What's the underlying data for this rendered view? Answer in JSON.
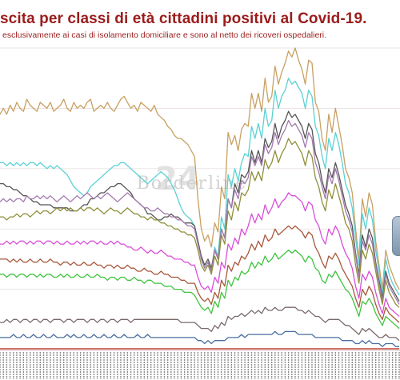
{
  "title": "scita per classi di età cittadini positivi al Covid-19.",
  "subtitle": "esclusivamente ai casi di isolamento domiciliare e sono al netto dei ricoveri ospedalieri.",
  "watermark": "Borderline",
  "watermark_badge": "24",
  "colors": {
    "title": "#9b1c1c",
    "grid": "#e6dada",
    "axis": "#c9a1a1",
    "watermark": "#cfcfcf"
  },
  "chart_data": {
    "type": "line",
    "n_points": 120,
    "x_axis": "dates (tick labels illegible)",
    "ylim": [
      0,
      100
    ],
    "grid": true,
    "legend": "none",
    "series": [
      {
        "color": "#c8a062",
        "values": [
          78,
          80,
          78,
          81,
          79,
          82,
          80,
          79,
          83,
          81,
          80,
          79,
          82,
          81,
          80,
          82,
          79,
          80,
          81,
          83,
          80,
          79,
          82,
          80,
          81,
          80,
          82,
          83,
          79,
          80,
          81,
          80,
          82,
          80,
          79,
          81,
          83,
          84,
          82,
          80,
          81,
          79,
          82,
          81,
          80,
          79,
          81,
          78,
          77,
          76,
          74,
          73,
          71,
          70,
          70,
          69,
          68,
          66,
          64,
          50,
          40,
          36,
          38,
          34,
          42,
          39,
          54,
          50,
          72,
          68,
          71,
          66,
          73,
          75,
          74,
          85,
          80,
          85,
          79,
          90,
          82,
          84,
          94,
          88,
          92,
          95,
          99,
          97,
          100,
          96,
          93,
          88,
          96,
          95,
          82,
          79,
          70,
          66,
          78,
          72,
          80,
          74,
          68,
          60,
          57,
          52,
          40,
          30,
          50,
          44,
          52,
          48,
          36,
          28,
          20,
          33,
          28,
          25,
          22,
          20
        ]
      },
      {
        "color": "#5bd1d4",
        "values": [
          62,
          62,
          61,
          62,
          61,
          62,
          61,
          62,
          61,
          62,
          62,
          61,
          62,
          61,
          60,
          61,
          60,
          61,
          60,
          59,
          58,
          56,
          54,
          53,
          52,
          51,
          52,
          54,
          55,
          56,
          57,
          58,
          59,
          60,
          61,
          61,
          62,
          62,
          61,
          60,
          59,
          58,
          57,
          56,
          55,
          56,
          57,
          58,
          59,
          58,
          57,
          55,
          53,
          50,
          47,
          45,
          44,
          43,
          41,
          36,
          30,
          27,
          29,
          26,
          34,
          31,
          44,
          40,
          58,
          54,
          60,
          56,
          62,
          65,
          64,
          74,
          70,
          75,
          70,
          80,
          74,
          76,
          86,
          80,
          84,
          86,
          90,
          88,
          89,
          87,
          85,
          80,
          86,
          84,
          74,
          71,
          64,
          60,
          70,
          66,
          72,
          68,
          62,
          55,
          52,
          47,
          37,
          28,
          45,
          40,
          47,
          43,
          33,
          26,
          18,
          30,
          25,
          22,
          20,
          18
        ]
      },
      {
        "color": "#555555",
        "values": [
          55,
          55,
          54,
          54,
          53,
          53,
          52,
          51,
          51,
          50,
          49,
          49,
          48,
          48,
          48,
          48,
          47,
          47,
          47,
          47,
          47,
          46,
          46,
          46,
          47,
          48,
          48,
          50,
          50,
          51,
          52,
          52,
          53,
          54,
          54,
          55,
          55,
          54,
          53,
          52,
          50,
          49,
          48,
          47,
          45,
          45,
          44,
          43,
          43,
          44,
          44,
          45,
          44,
          44,
          43,
          42,
          42,
          42,
          41,
          36,
          31,
          28,
          30,
          27,
          33,
          30,
          40,
          37,
          50,
          47,
          55,
          52,
          58,
          57,
          59,
          66,
          62,
          66,
          62,
          70,
          67,
          69,
          75,
          70,
          74,
          76,
          79,
          77,
          78,
          76,
          74,
          70,
          75,
          73,
          65,
          62,
          56,
          52,
          60,
          57,
          62,
          58,
          53,
          48,
          45,
          41,
          32,
          25,
          38,
          34,
          40,
          37,
          29,
          23,
          17,
          26,
          22,
          20,
          18,
          16
        ]
      },
      {
        "color": "#a37aad",
        "values": [
          49,
          50,
          49,
          50,
          49,
          50,
          50,
          49,
          51,
          50,
          50,
          51,
          50,
          51,
          50,
          51,
          50,
          49,
          50,
          51,
          50,
          49,
          50,
          51,
          50,
          51,
          52,
          51,
          50,
          51,
          50,
          51,
          52,
          51,
          50,
          49,
          50,
          51,
          52,
          51,
          50,
          49,
          48,
          47,
          47,
          46,
          46,
          47,
          46,
          45,
          45,
          44,
          44,
          43,
          43,
          42,
          41,
          41,
          40,
          35,
          30,
          27,
          29,
          26,
          33,
          30,
          40,
          37,
          50,
          47,
          53,
          50,
          56,
          55,
          57,
          64,
          61,
          64,
          61,
          68,
          65,
          67,
          72,
          68,
          71,
          73,
          76,
          74,
          75,
          73,
          71,
          67,
          72,
          70,
          62,
          59,
          54,
          50,
          58,
          55,
          60,
          56,
          51,
          46,
          43,
          39,
          31,
          24,
          36,
          33,
          38,
          35,
          28,
          22,
          16,
          25,
          21,
          19,
          17,
          15
        ]
      },
      {
        "color": "#8f8f3c",
        "values": [
          44,
          44,
          43,
          44,
          44,
          45,
          44,
          45,
          45,
          44,
          45,
          46,
          45,
          46,
          46,
          45,
          46,
          47,
          46,
          47,
          46,
          47,
          46,
          46,
          47,
          46,
          47,
          47,
          46,
          47,
          46,
          45,
          46,
          47,
          46,
          46,
          45,
          46,
          47,
          46,
          45,
          45,
          44,
          44,
          43,
          44,
          43,
          43,
          42,
          42,
          41,
          41,
          40,
          40,
          39,
          39,
          38,
          38,
          37,
          33,
          28,
          26,
          28,
          25,
          31,
          28,
          38,
          35,
          46,
          43,
          49,
          46,
          52,
          51,
          53,
          59,
          56,
          59,
          56,
          63,
          60,
          62,
          66,
          62,
          65,
          67,
          70,
          68,
          69,
          67,
          65,
          61,
          66,
          64,
          57,
          54,
          49,
          46,
          53,
          50,
          55,
          51,
          47,
          42,
          40,
          36,
          28,
          22,
          33,
          30,
          35,
          32,
          26,
          20,
          15,
          23,
          19,
          17,
          15,
          14
        ]
      },
      {
        "color": "#d84fd8",
        "values": [
          35,
          35,
          36,
          35,
          36,
          35,
          36,
          36,
          35,
          36,
          35,
          36,
          36,
          35,
          36,
          36,
          35,
          36,
          35,
          35,
          36,
          35,
          35,
          36,
          35,
          36,
          35,
          36,
          36,
          35,
          36,
          35,
          35,
          36,
          35,
          36,
          35,
          35,
          34,
          34,
          33,
          33,
          34,
          33,
          32,
          33,
          32,
          32,
          33,
          32,
          31,
          31,
          30,
          30,
          30,
          29,
          29,
          28,
          28,
          24,
          21,
          20,
          21,
          19,
          24,
          22,
          29,
          27,
          35,
          33,
          37,
          35,
          40,
          38,
          41,
          45,
          42,
          45,
          43,
          48,
          45,
          47,
          50,
          47,
          49,
          50,
          52,
          51,
          51,
          50,
          49,
          46,
          49,
          48,
          43,
          41,
          37,
          35,
          40,
          38,
          41,
          39,
          35,
          32,
          30,
          27,
          21,
          17,
          25,
          23,
          26,
          24,
          19,
          15,
          12,
          17,
          14,
          13,
          12,
          11
        ]
      },
      {
        "color": "#a7593c",
        "values": [
          30,
          30,
          30,
          29,
          30,
          29,
          30,
          29,
          29,
          30,
          29,
          29,
          30,
          29,
          29,
          30,
          29,
          29,
          28,
          29,
          29,
          28,
          29,
          28,
          28,
          29,
          28,
          28,
          29,
          28,
          28,
          27,
          28,
          28,
          27,
          28,
          27,
          27,
          28,
          27,
          27,
          26,
          26,
          27,
          26,
          26,
          25,
          25,
          26,
          25,
          25,
          24,
          24,
          24,
          23,
          23,
          22,
          22,
          22,
          19,
          17,
          16,
          17,
          15,
          19,
          17,
          23,
          21,
          28,
          26,
          29,
          28,
          31,
          30,
          32,
          35,
          33,
          36,
          34,
          38,
          36,
          37,
          40,
          38,
          39,
          40,
          41,
          40,
          41,
          40,
          39,
          37,
          39,
          38,
          34,
          32,
          29,
          27,
          31,
          30,
          32,
          30,
          27,
          25,
          23,
          21,
          17,
          14,
          20,
          18,
          21,
          19,
          15,
          12,
          10,
          14,
          12,
          11,
          10,
          9
        ]
      },
      {
        "color": "#3fc43f",
        "values": [
          25,
          25,
          24,
          25,
          25,
          24,
          25,
          25,
          24,
          25,
          25,
          24,
          25,
          24,
          25,
          25,
          24,
          24,
          25,
          24,
          25,
          24,
          24,
          25,
          24,
          24,
          25,
          24,
          24,
          25,
          24,
          24,
          23,
          24,
          24,
          23,
          24,
          24,
          23,
          23,
          24,
          23,
          23,
          22,
          23,
          23,
          22,
          22,
          22,
          21,
          21,
          21,
          20,
          20,
          20,
          19,
          19,
          19,
          18,
          16,
          14,
          13,
          14,
          12,
          16,
          14,
          19,
          17,
          23,
          21,
          24,
          23,
          26,
          25,
          26,
          29,
          27,
          29,
          28,
          31,
          29,
          30,
          32,
          30,
          31,
          32,
          33,
          32,
          33,
          32,
          31,
          29,
          31,
          30,
          27,
          26,
          23,
          22,
          25,
          24,
          26,
          24,
          22,
          20,
          19,
          17,
          14,
          11,
          16,
          15,
          17,
          15,
          12,
          10,
          8,
          11,
          10,
          9,
          8,
          7
        ]
      },
      {
        "color": "#7a6a6a",
        "values": [
          9,
          9,
          10,
          9,
          10,
          10,
          9,
          10,
          10,
          9,
          10,
          10,
          9,
          10,
          10,
          9,
          10,
          10,
          10,
          9,
          10,
          10,
          9,
          10,
          10,
          10,
          9,
          10,
          10,
          9,
          10,
          10,
          9,
          10,
          10,
          9,
          10,
          10,
          10,
          9,
          10,
          10,
          10,
          10,
          10,
          10,
          10,
          10,
          10,
          10,
          10,
          10,
          10,
          10,
          9,
          9,
          9,
          9,
          9,
          8,
          7,
          7,
          7,
          6,
          8,
          7,
          9,
          8,
          11,
          10,
          11,
          11,
          12,
          11,
          12,
          13,
          12,
          13,
          12,
          14,
          13,
          13,
          14,
          13,
          13,
          14,
          14,
          14,
          14,
          13,
          13,
          12,
          13,
          12,
          11,
          11,
          10,
          9,
          10,
          10,
          10,
          10,
          9,
          8,
          8,
          7,
          6,
          5,
          7,
          6,
          7,
          6,
          5,
          4,
          4,
          5,
          4,
          4,
          4,
          3
        ]
      },
      {
        "color": "#4a6fa0",
        "values": [
          4,
          4,
          4,
          4,
          5,
          4,
          4,
          5,
          4,
          4,
          5,
          4,
          4,
          5,
          4,
          4,
          5,
          4,
          4,
          4,
          5,
          4,
          5,
          4,
          4,
          5,
          4,
          4,
          5,
          4,
          4,
          5,
          4,
          4,
          5,
          4,
          4,
          5,
          4,
          4,
          4,
          5,
          4,
          4,
          5,
          4,
          4,
          4,
          4,
          4,
          4,
          4,
          4,
          4,
          4,
          4,
          4,
          4,
          4,
          3,
          3,
          2,
          3,
          2,
          3,
          3,
          3,
          3,
          4,
          4,
          4,
          4,
          5,
          4,
          5,
          5,
          5,
          5,
          5,
          5,
          5,
          5,
          6,
          5,
          5,
          6,
          6,
          6,
          6,
          5,
          5,
          5,
          5,
          5,
          4,
          4,
          4,
          4,
          4,
          4,
          4,
          4,
          3,
          3,
          3,
          3,
          2,
          2,
          3,
          2,
          3,
          2,
          2,
          2,
          1,
          2,
          2,
          2,
          1,
          1
        ]
      },
      {
        "color": "#c0392b",
        "values": [
          0.3,
          0.3,
          0.3,
          0.3,
          0.3,
          0.3,
          0.3,
          0.3,
          0.3,
          0.3,
          0.3,
          0.3,
          0.3,
          0.3,
          0.3,
          0.3,
          0.3,
          0.3,
          0.3,
          0.3,
          0.3,
          0.3,
          0.3,
          0.3,
          0.3,
          0.3,
          0.3,
          0.3,
          0.3,
          0.3,
          0.3,
          0.3,
          0.3,
          0.3,
          0.3,
          0.3,
          0.3,
          0.3,
          0.3,
          0.3,
          0.3,
          0.3,
          0.3,
          0.3,
          0.3,
          0.3,
          0.3,
          0.3,
          0.3,
          0.3,
          0.3,
          0.3,
          0.3,
          0.3,
          0.3,
          0.3,
          0.3,
          0.3,
          0.3,
          0.3,
          0.3,
          0.3,
          0.3,
          0.3,
          0.3,
          0.3,
          0.3,
          0.3,
          0.3,
          0.3,
          0.3,
          0.3,
          0.3,
          0.3,
          0.3,
          0.3,
          0.3,
          0.3,
          0.3,
          0.3,
          0.3,
          0.3,
          0.3,
          0.3,
          0.3,
          0.3,
          0.3,
          0.3,
          0.3,
          0.3,
          0.3,
          0.3,
          0.3,
          0.3,
          0.3,
          0.3,
          0.3,
          0.3,
          0.3,
          0.3,
          0.3,
          0.3,
          0.3,
          0.3,
          0.3,
          0.3,
          0.3,
          0.3,
          0.3,
          0.3,
          0.3,
          0.3,
          0.3,
          0.3,
          0.3,
          0.3,
          0.3,
          0.3,
          0.3,
          0.3
        ]
      }
    ]
  }
}
